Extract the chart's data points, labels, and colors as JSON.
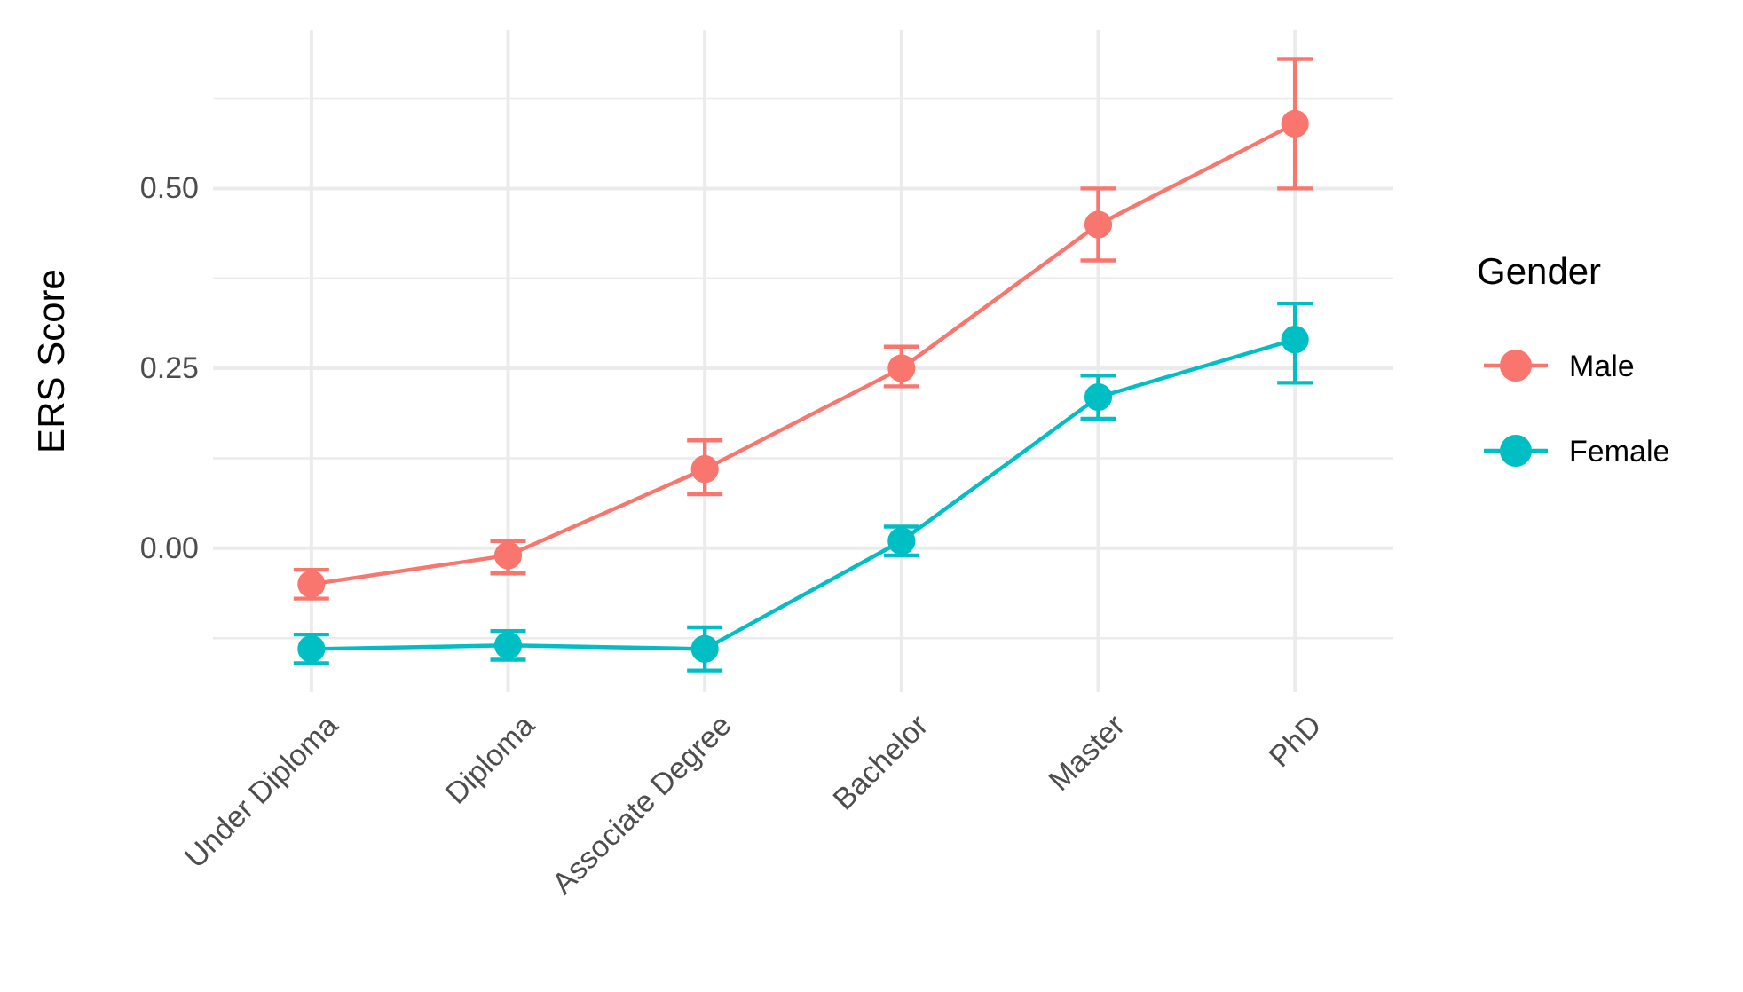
{
  "chart_data": {
    "type": "line",
    "ylabel": "ERS Score",
    "legend_title": "Gender",
    "categories": [
      "Under Diploma",
      "Diploma",
      "Associate Degree",
      "Bachelor",
      "Master",
      "PhD"
    ],
    "series": [
      {
        "name": "Male",
        "color": "#f8766d",
        "values": [
          -0.05,
          -0.01,
          0.11,
          0.25,
          0.45,
          0.59
        ],
        "errors": [
          [
            -0.07,
            -0.03
          ],
          [
            -0.035,
            0.01
          ],
          [
            0.075,
            0.15
          ],
          [
            0.225,
            0.28
          ],
          [
            0.4,
            0.5
          ],
          [
            0.5,
            0.68
          ]
        ]
      },
      {
        "name": "Female",
        "color": "#00bfc4",
        "values": [
          -0.14,
          -0.135,
          -0.14,
          0.01,
          0.21,
          0.29
        ],
        "errors": [
          [
            -0.16,
            -0.12
          ],
          [
            -0.155,
            -0.115
          ],
          [
            -0.17,
            -0.11
          ],
          [
            -0.01,
            0.03
          ],
          [
            0.18,
            0.24
          ],
          [
            0.23,
            0.34
          ]
        ]
      }
    ],
    "ylim": [
      -0.2,
      0.72
    ],
    "yticks": [
      {
        "value": -0.125,
        "label": null
      },
      {
        "value": 0,
        "label": "0.00"
      },
      {
        "value": 0.125,
        "label": null
      },
      {
        "value": 0.25,
        "label": "0.25"
      },
      {
        "value": 0.375,
        "label": null
      },
      {
        "value": 0.5,
        "label": "0.50"
      },
      {
        "value": 0.625,
        "label": null
      }
    ],
    "grid": true,
    "legend": "right",
    "marker": "circle",
    "line_style": "solid"
  }
}
